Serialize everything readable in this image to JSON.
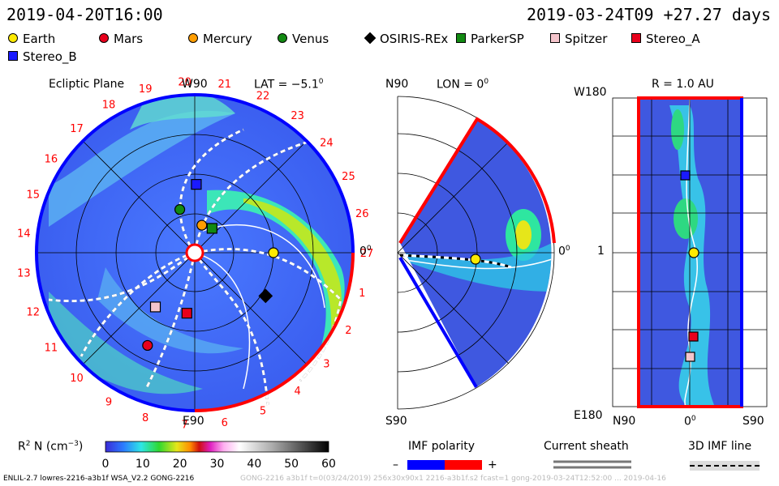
{
  "header": {
    "date_left": "2019-04-20T16:00",
    "date_right": "2019-03-24T09 +27.27 days"
  },
  "legend": [
    {
      "name": "Earth",
      "shape": "circle",
      "color": "#ffea00"
    },
    {
      "name": "Mars",
      "shape": "circle",
      "color": "#e8001c"
    },
    {
      "name": "Mercury",
      "shape": "circle",
      "color": "#ff9d00"
    },
    {
      "name": "Venus",
      "shape": "circle",
      "color": "#128a12"
    },
    {
      "name": "OSIRIS-REx",
      "shape": "diamond",
      "color": "#000000"
    },
    {
      "name": "ParkerSP",
      "shape": "square",
      "color": "#128a12"
    },
    {
      "name": "Spitzer",
      "shape": "square",
      "color": "#f5c5cc"
    },
    {
      "name": "Stereo_A",
      "shape": "square",
      "color": "#e8001c"
    },
    {
      "name": "Stereo_B",
      "shape": "square",
      "color": "#1a1aff"
    }
  ],
  "panels": {
    "ecliptic": {
      "title": "Ecliptic Plane",
      "top_label": "W90",
      "lat_label": "LAT = −5.1",
      "lat_deg": "0",
      "right_label": "0",
      "right_deg": "0",
      "bottom_label": "E90",
      "carrington_days": [
        "1",
        "2",
        "3",
        "4",
        "5",
        "6",
        "7",
        "8",
        "9",
        "10",
        "11",
        "12",
        "13",
        "14",
        "15",
        "16",
        "17",
        "18",
        "19",
        "20",
        "21",
        "22",
        "23",
        "24",
        "25",
        "26",
        "27"
      ]
    },
    "meridional": {
      "top_label": "N90",
      "lon_label": "LON = 0",
      "lon_deg": "0",
      "right_label": "0",
      "right_deg": "0",
      "bottom_label": "S90"
    },
    "radial": {
      "r_label": "R = 1.0 AU",
      "top_left": "W180",
      "mid_left": "1",
      "bottom_left": "E180",
      "x_left": "N90",
      "x_mid": "0",
      "x_mid_deg": "0",
      "x_right": "S90"
    }
  },
  "colorbar": {
    "label": "R",
    "label_sup": "2",
    "label_rest": " N (cm",
    "label_exp": "−3",
    "label_end": ")",
    "ticks": [
      "0",
      "10",
      "20",
      "30",
      "40",
      "50",
      "60"
    ]
  },
  "imf": {
    "polarity_title": "IMF polarity",
    "minus": "–",
    "plus": "+",
    "sheath_title": "Current sheath",
    "line_title": "3D IMF line",
    "colors": {
      "negative": "#0000ff",
      "positive": "#ff0000"
    }
  },
  "footer": {
    "left": "ENLIL-2.7 lowres-2216-a3b1f WSA_V2.2 GONG-2216",
    "right": "GONG-2216 a3b1f t=0(03/24/2019) 256x30x90x1 2216-a3b1f.s2 fcast=1 gong-2019-03-24T12:52:00 ... 2019-04-16"
  },
  "chart_data": {
    "type": "heatmap",
    "title": "Ecliptic Plane",
    "colorbar_range": [
      0,
      60
    ],
    "colorbar_ticks": [
      0,
      10,
      20,
      30,
      40,
      50,
      60
    ],
    "ecliptic_positions_au": [
      {
        "name": "Earth",
        "x": 1.0,
        "y": 0.0
      },
      {
        "name": "Mercury",
        "x": 0.09,
        "y": 0.35
      },
      {
        "name": "Venus",
        "x": -0.19,
        "y": 0.55
      },
      {
        "name": "ParkerSP",
        "x": 0.22,
        "y": 0.31
      },
      {
        "name": "Stereo_B",
        "x": 0.02,
        "y": 0.87
      },
      {
        "name": "Stereo_A",
        "x": -0.1,
        "y": -0.77
      },
      {
        "name": "Spitzer",
        "x": -0.5,
        "y": -0.69
      },
      {
        "name": "Mars",
        "x": -0.6,
        "y": -1.18
      },
      {
        "name": "OSIRIS-REx",
        "x": 0.9,
        "y": -0.55
      }
    ]
  }
}
